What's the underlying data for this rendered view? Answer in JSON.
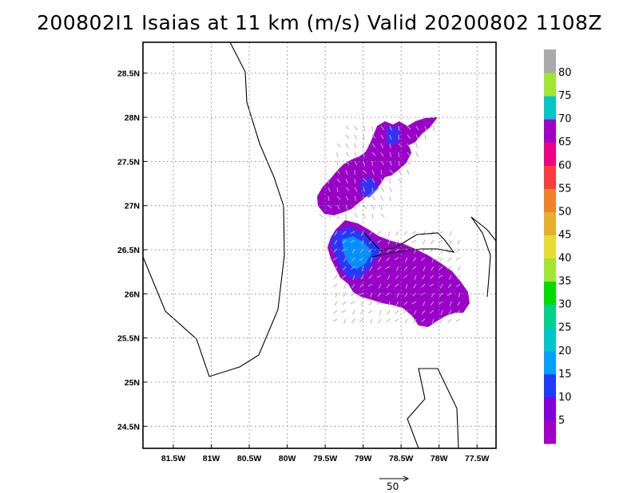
{
  "title": "200802I1 Isaias at 11 km (m/s) Valid 20200802 1108Z",
  "map": {
    "lon_range": [
      -81.9,
      -77.25
    ],
    "lat_range": [
      24.25,
      28.85
    ],
    "lon_ticks": [
      -81.5,
      -81,
      -80.5,
      -80,
      -79.5,
      -79,
      -78.5,
      -78,
      -77.5
    ],
    "lon_labels": [
      "81.5W",
      "81W",
      "80.5W",
      "80W",
      "79.5W",
      "79W",
      "78.5W",
      "78W",
      "77.5W"
    ],
    "lat_ticks": [
      24.5,
      25,
      25.5,
      26,
      26.5,
      27,
      27.5,
      28,
      28.5
    ],
    "lat_labels": [
      "24.5N",
      "25N",
      "25.5N",
      "26N",
      "26.5N",
      "27N",
      "27.5N",
      "28N",
      "28.5N"
    ],
    "grid": "dotted"
  },
  "colorbar": {
    "labels": [
      "5",
      "10",
      "15",
      "20",
      "25",
      "30",
      "35",
      "40",
      "45",
      "50",
      "55",
      "60",
      "65",
      "70",
      "75",
      "80"
    ],
    "colors": [
      "#a000c8",
      "#8200dc",
      "#1e3cff",
      "#00a0ff",
      "#00c8c8",
      "#00d28c",
      "#00dc00",
      "#a0e632",
      "#e6dc32",
      "#e6af2d",
      "#f08228",
      "#fa3c3c",
      "#f00082",
      "#a000c8",
      "#00c8c8",
      "#a0e632",
      "#aaaaaa"
    ]
  },
  "reference_vector": {
    "label": "50"
  }
}
